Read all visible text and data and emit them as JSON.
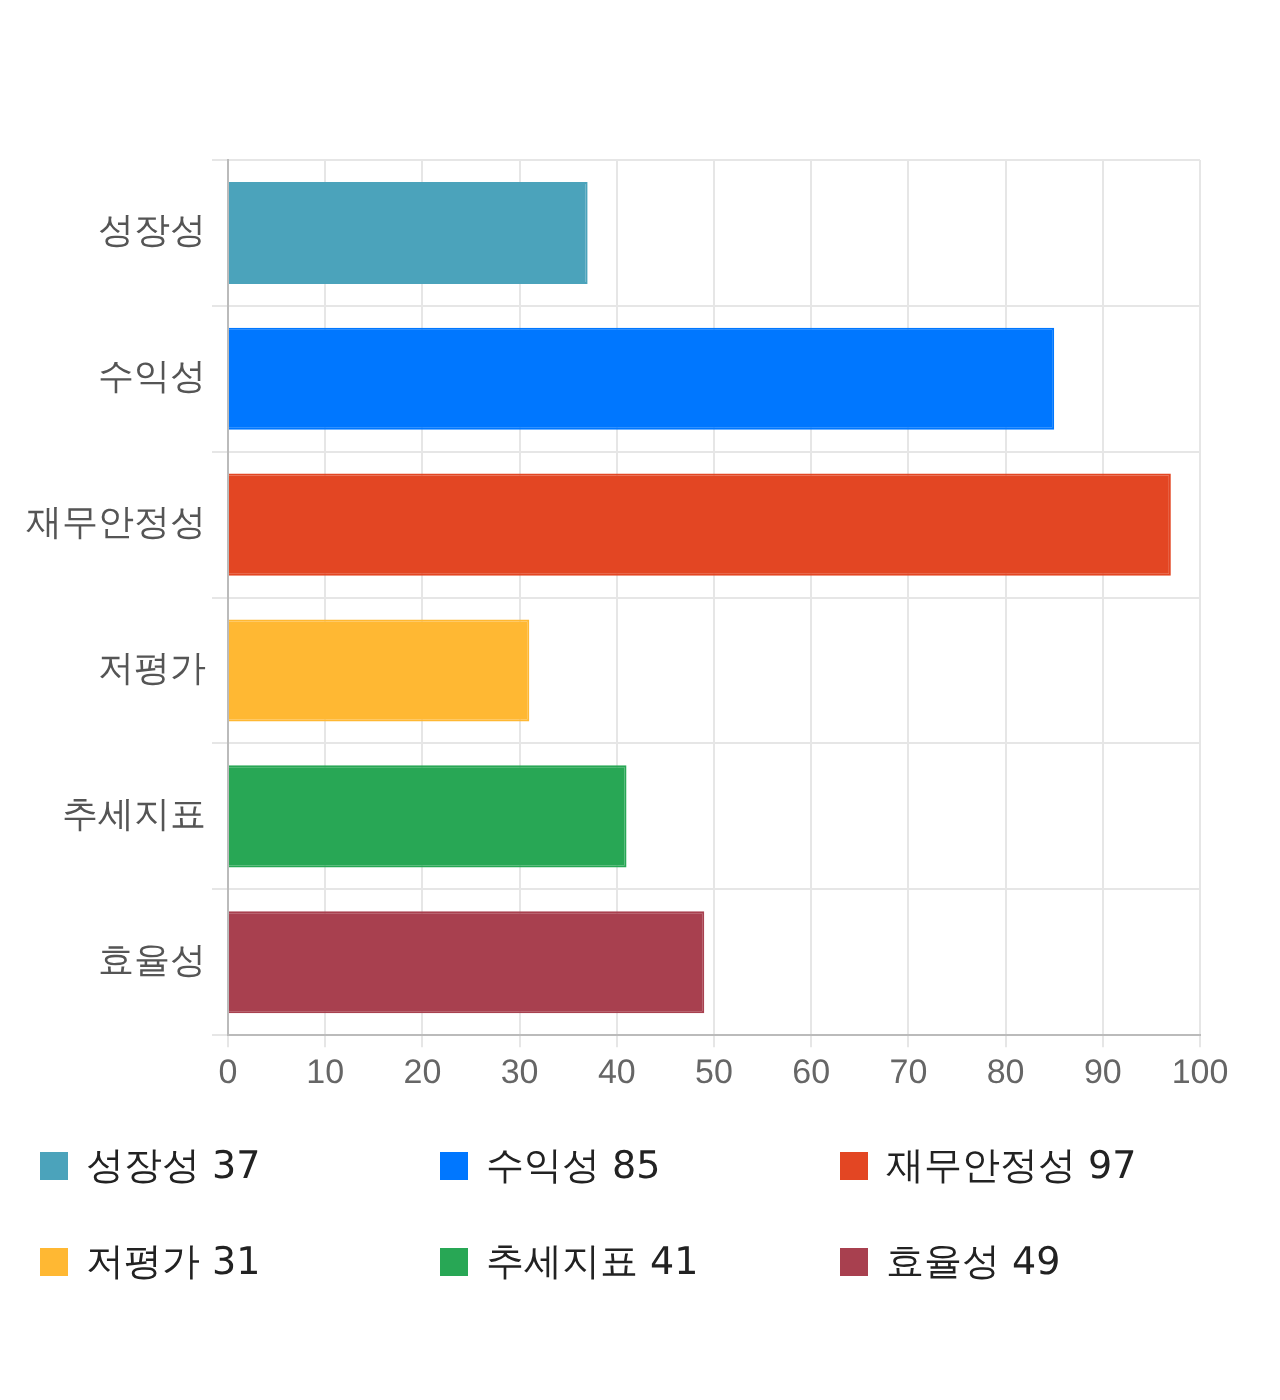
{
  "chart_data": {
    "type": "bar",
    "orientation": "horizontal",
    "stacked": true,
    "categories": [
      "성장성",
      "수익성",
      "재무안정성",
      "저평가",
      "추세지표",
      "효율성"
    ],
    "series": [
      {
        "name": "성장성 37",
        "color": "#4ba3bb",
        "values": [
          37,
          null,
          null,
          null,
          null,
          null
        ]
      },
      {
        "name": "수익성 85",
        "color": "#0077ff",
        "values": [
          null,
          85,
          null,
          null,
          null,
          null
        ]
      },
      {
        "name": "재무안정성 97",
        "color": "#e34623",
        "values": [
          null,
          null,
          97,
          null,
          null,
          null
        ]
      },
      {
        "name": "저평가 31",
        "color": "#ffb833",
        "values": [
          null,
          null,
          null,
          31,
          null,
          null
        ]
      },
      {
        "name": "추세지표 41",
        "color": "#28a755",
        "values": [
          null,
          null,
          null,
          null,
          41,
          null
        ]
      },
      {
        "name": "효율성 49",
        "color": "#a8404f",
        "values": [
          null,
          null,
          null,
          null,
          null,
          49
        ]
      }
    ],
    "xlim": [
      0,
      100
    ],
    "xticks": [
      0,
      10,
      20,
      30,
      40,
      50,
      60,
      70,
      80,
      90,
      100
    ],
    "grid": true,
    "legend": "bottom"
  }
}
